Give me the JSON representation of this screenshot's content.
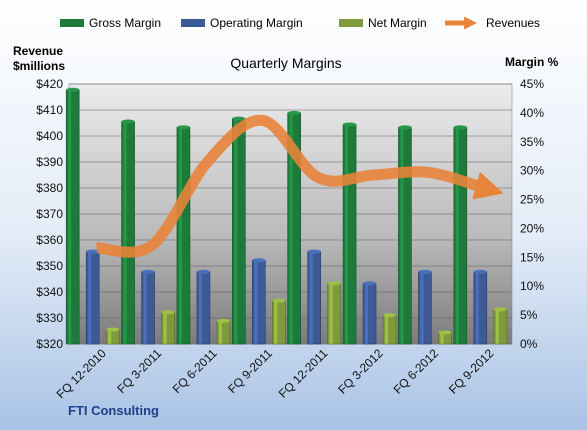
{
  "chart_data": {
    "type": "bar",
    "title": "Quarterly Margins",
    "categories": [
      "FQ 12-2010",
      "FQ 3-2011",
      "FQ 6-2011",
      "FQ 9-2011",
      "FQ 12-2011",
      "FQ 3-2012",
      "FQ 6-2012",
      "FQ 9-2012"
    ],
    "series": [
      {
        "name": "Gross Margin",
        "axis": "right",
        "color": "#1e7a3a",
        "values": [
          44.0,
          38.5,
          37.5,
          39.0,
          40.0,
          38.0,
          37.5,
          37.5
        ]
      },
      {
        "name": "Operating Margin",
        "axis": "right",
        "color": "#3d5a96",
        "values": [
          16.0,
          12.5,
          12.5,
          14.5,
          16.0,
          10.5,
          12.5,
          12.5
        ]
      },
      {
        "name": "Net Margin",
        "axis": "right",
        "color": "#7f9a3a",
        "values": [
          2.5,
          5.5,
          4.0,
          7.5,
          10.5,
          5.0,
          2.0,
          6.0
        ]
      },
      {
        "name": "Revenues",
        "axis": "left",
        "type": "line",
        "color": "#e8833a",
        "values": [
          357,
          358,
          390,
          406,
          384,
          385,
          386,
          380
        ]
      }
    ],
    "y_left": {
      "label_line1": "Revenue",
      "label_line2": "$millions",
      "min": 320,
      "max": 420,
      "step": 10,
      "tick_labels": [
        "$320",
        "$330",
        "$340",
        "$350",
        "$360",
        "$370",
        "$380",
        "$390",
        "$400",
        "$410",
        "$420"
      ]
    },
    "y_right": {
      "label": "Margin %",
      "min": 0,
      "max": 45,
      "step": 5,
      "tick_labels": [
        "0%",
        "5%",
        "10%",
        "15%",
        "20%",
        "25%",
        "30%",
        "35%",
        "40%",
        "45%"
      ]
    },
    "legend": {
      "position": "top",
      "entries": [
        "Gross Margin",
        "Operating Margin",
        "Net Margin",
        "Revenues"
      ]
    },
    "grid": true,
    "source": "FTI Consulting"
  }
}
